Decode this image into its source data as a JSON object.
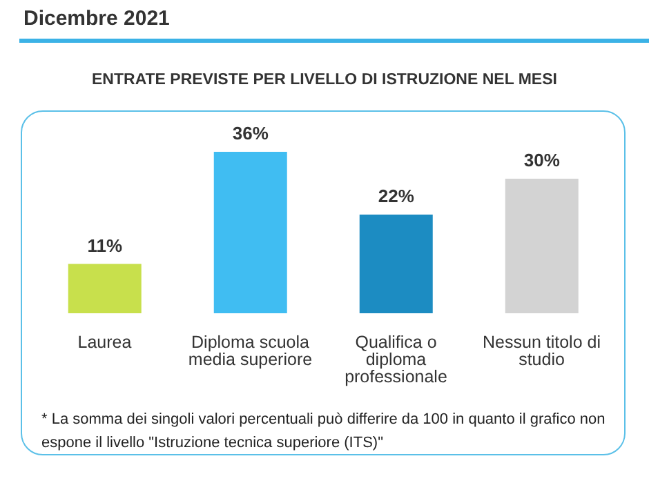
{
  "chart_data": {
    "type": "bar",
    "title": "Dicembre 2021",
    "subtitle": "ENTRATE PREVISTE PER LIVELLO DI ISTRUZIONE NEL MESI",
    "categories": [
      "Laurea",
      "Diploma scuola media superiore",
      "Qualifica o diploma professionale",
      "Nessun titolo di studio"
    ],
    "values": [
      11,
      36,
      22,
      30
    ],
    "colors": [
      "#c8e04c",
      "#40bdf2",
      "#1c8cc2",
      "#d3d3d3"
    ],
    "value_labels": [
      "11%",
      "36%",
      "22%",
      "30%"
    ],
    "annotations": [
      "* La somma dei singoli valori percentuali può differire da 100 in quanto il grafico non espone il livello \"Istruzione tecnica superiore (ITS)\""
    ],
    "grid": false,
    "legend": false
  }
}
